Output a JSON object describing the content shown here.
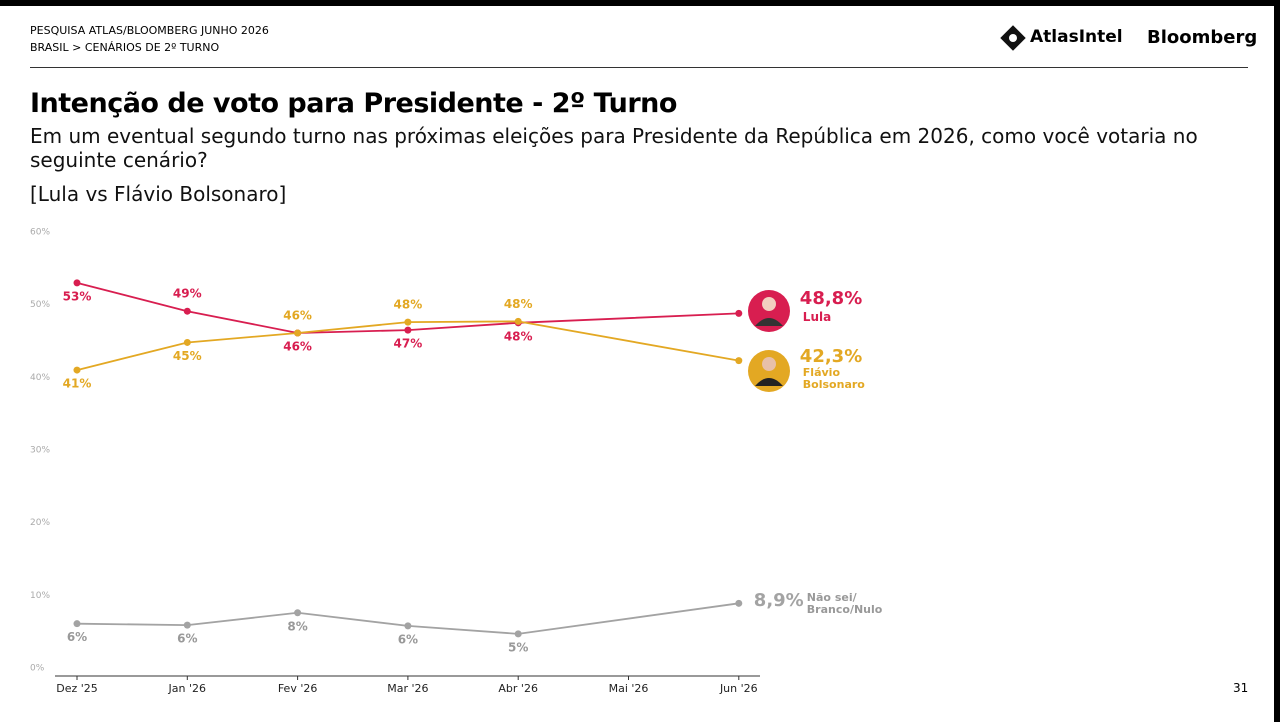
{
  "header": {
    "survey": "PESQUISA ATLAS/BLOOMBERG JUNHO 2026",
    "breadcrumb": "BRASIL > CENÁRIOS DE 2º TURNO",
    "logo_left": "AtlasIntel",
    "logo_right": "Bloomberg"
  },
  "title": "Intenção de voto para Presidente - 2º Turno",
  "subtitle": "Em um eventual segundo turno nas próximas eleições para Presidente da República em 2026, como você votaria no seguinte cenário?",
  "scenario": "[Lula vs Flávio Bolsonaro]",
  "page_number": "31",
  "chart_data": {
    "type": "line",
    "categories": [
      "Dez '25",
      "Jan '26",
      "Fev '26",
      "Mar '26",
      "Abr '26",
      "Mai '26",
      "Jun '26"
    ],
    "ylim": [
      0,
      60
    ],
    "yticks": [
      {
        "value": 0,
        "label": "0%"
      },
      {
        "value": 10,
        "label": "10%"
      },
      {
        "value": 20,
        "label": "20%"
      },
      {
        "value": 30,
        "label": "30%"
      },
      {
        "value": 40,
        "label": "40%"
      },
      {
        "value": 50,
        "label": "50%"
      },
      {
        "value": 60,
        "label": "60%"
      }
    ],
    "grid": false,
    "series": [
      {
        "name": "Lula",
        "color": "#d81e50",
        "x": [
          "Dez '25",
          "Jan '26",
          "Fev '26",
          "Mar '26",
          "Abr '26",
          "Jun '26"
        ],
        "values": [
          53,
          49.1,
          46.1,
          46.5,
          47.5,
          48.8
        ],
        "value_labels": [
          "53%",
          "49%",
          "46%",
          "47%",
          "48%",
          "48,8%"
        ]
      },
      {
        "name": "Flávio Bolsonaro",
        "color": "#e3a823",
        "x": [
          "Dez '25",
          "Jan '26",
          "Fev '26",
          "Mar '26",
          "Abr '26",
          "Jun '26"
        ],
        "values": [
          41,
          44.8,
          46.1,
          47.6,
          47.7,
          42.3
        ],
        "value_labels": [
          "41%",
          "45%",
          "46%",
          "48%",
          "48%",
          "42,3%"
        ]
      },
      {
        "name": "Não sei/ Branco/Nulo",
        "color": "#a3a3a3",
        "x": [
          "Dez '25",
          "Jan '26",
          "Fev '26",
          "Mar '26",
          "Abr '26",
          "Jun '26"
        ],
        "values": [
          6.1,
          5.9,
          7.6,
          5.8,
          4.7,
          8.9
        ],
        "value_labels": [
          "6%",
          "6%",
          "8%",
          "6%",
          "5%",
          "8,9%"
        ]
      }
    ]
  }
}
